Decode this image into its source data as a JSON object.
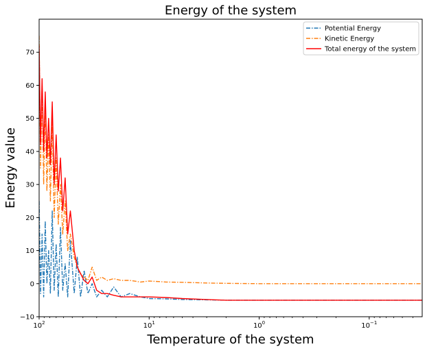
{
  "chart_data": {
    "type": "line",
    "title": "Energy of the system",
    "xlabel": "Temperature of the system",
    "ylabel": "Energy value",
    "xscale": "log",
    "xaxis_inverted": true,
    "xlim": [
      100,
      0.033
    ],
    "ylim": [
      -10,
      80
    ],
    "xticks": [
      {
        "value": 100,
        "base": "10",
        "exp": "2"
      },
      {
        "value": 10,
        "base": "10",
        "exp": "1"
      },
      {
        "value": 1,
        "base": "10",
        "exp": "0"
      },
      {
        "value": 0.1,
        "base": "10",
        "exp": "−1"
      }
    ],
    "yticks": [
      -10,
      0,
      10,
      20,
      30,
      40,
      50,
      60,
      70
    ],
    "legend_position": "top-right",
    "grid": false,
    "series": [
      {
        "name": "Potential Energy",
        "color": "#1f77b4",
        "style": "dashdot",
        "x": [
          100,
          97,
          94,
          91,
          88,
          85,
          82,
          79,
          76,
          73,
          70,
          67,
          64,
          61,
          58,
          55,
          52,
          48,
          45,
          42,
          39,
          36,
          33,
          30,
          27,
          24,
          21,
          18,
          15,
          12,
          10,
          7,
          5,
          3,
          2,
          1,
          0.5,
          0.2,
          0.1,
          0.05,
          0.033
        ],
        "y": [
          25,
          -3,
          15,
          -4,
          19,
          0,
          10,
          -3,
          22,
          -2,
          12,
          -4,
          17,
          -2,
          6,
          -4,
          13,
          -3,
          8,
          -4,
          4,
          -3,
          0,
          -4,
          -2,
          -4,
          -1,
          -4,
          -3,
          -4,
          -4.5,
          -4.6,
          -4.8,
          -4.9,
          -5,
          -5,
          -5,
          -5,
          -5,
          -5,
          -5
        ]
      },
      {
        "name": "Kinetic Energy",
        "color": "#ff7f0e",
        "style": "dashdot",
        "x": [
          100,
          97,
          94,
          91,
          88,
          85,
          82,
          79,
          76,
          73,
          70,
          67,
          64,
          61,
          58,
          55,
          52,
          48,
          45,
          42,
          39,
          36,
          33,
          30,
          27,
          24,
          21,
          18,
          15,
          12,
          10,
          7,
          5,
          3,
          2,
          1,
          0.5,
          0.2,
          0.1,
          0.05,
          0.033
        ],
        "y": [
          75,
          35,
          60,
          30,
          55,
          28,
          45,
          25,
          50,
          20,
          38,
          18,
          30,
          15,
          25,
          10,
          15,
          8,
          5,
          3,
          2,
          1,
          5,
          1,
          2,
          1,
          1.5,
          1,
          1,
          0.5,
          0.8,
          0.5,
          0.4,
          0.2,
          0.1,
          0,
          0,
          0,
          0,
          0,
          0
        ]
      },
      {
        "name": "Total energy of the system",
        "color": "#ff0000",
        "style": "solid",
        "x": [
          100,
          97,
          94,
          91,
          88,
          85,
          82,
          79,
          76,
          73,
          70,
          67,
          64,
          61,
          58,
          55,
          52,
          48,
          45,
          42,
          39,
          36,
          33,
          30,
          27,
          24,
          21,
          18,
          15,
          12,
          10,
          7,
          5,
          3,
          2,
          1,
          0.5,
          0.2,
          0.1,
          0.05,
          0.033
        ],
        "y": [
          72,
          42,
          62,
          40,
          58,
          38,
          50,
          36,
          55,
          30,
          45,
          28,
          38,
          22,
          32,
          15,
          22,
          10,
          5,
          3,
          1,
          0,
          2,
          -2,
          -3,
          -3,
          -3.5,
          -4,
          -4,
          -4,
          -4,
          -4.2,
          -4.5,
          -4.8,
          -5,
          -5,
          -5,
          -5,
          -5,
          -5,
          -5
        ]
      }
    ]
  }
}
